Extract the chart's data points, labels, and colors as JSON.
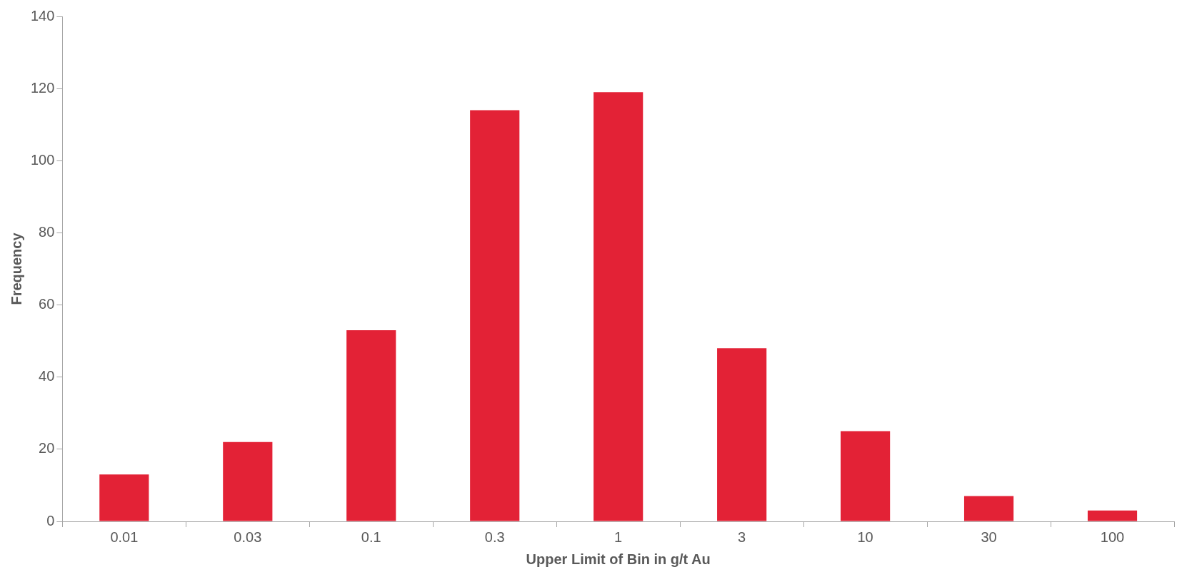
{
  "chart_data": {
    "type": "bar",
    "xlabel": "Upper Limit of Bin in g/t Au",
    "ylabel": "Frequency",
    "categories": [
      "0.01",
      "0.03",
      "0.1",
      "0.3",
      "1",
      "3",
      "10",
      "30",
      "100"
    ],
    "values": [
      13,
      22,
      53,
      114,
      119,
      48,
      25,
      7,
      3
    ],
    "color": "#e32236",
    "ylim": [
      0,
      140
    ],
    "yticks": [
      0,
      20,
      40,
      60,
      80,
      100,
      120,
      140
    ]
  }
}
